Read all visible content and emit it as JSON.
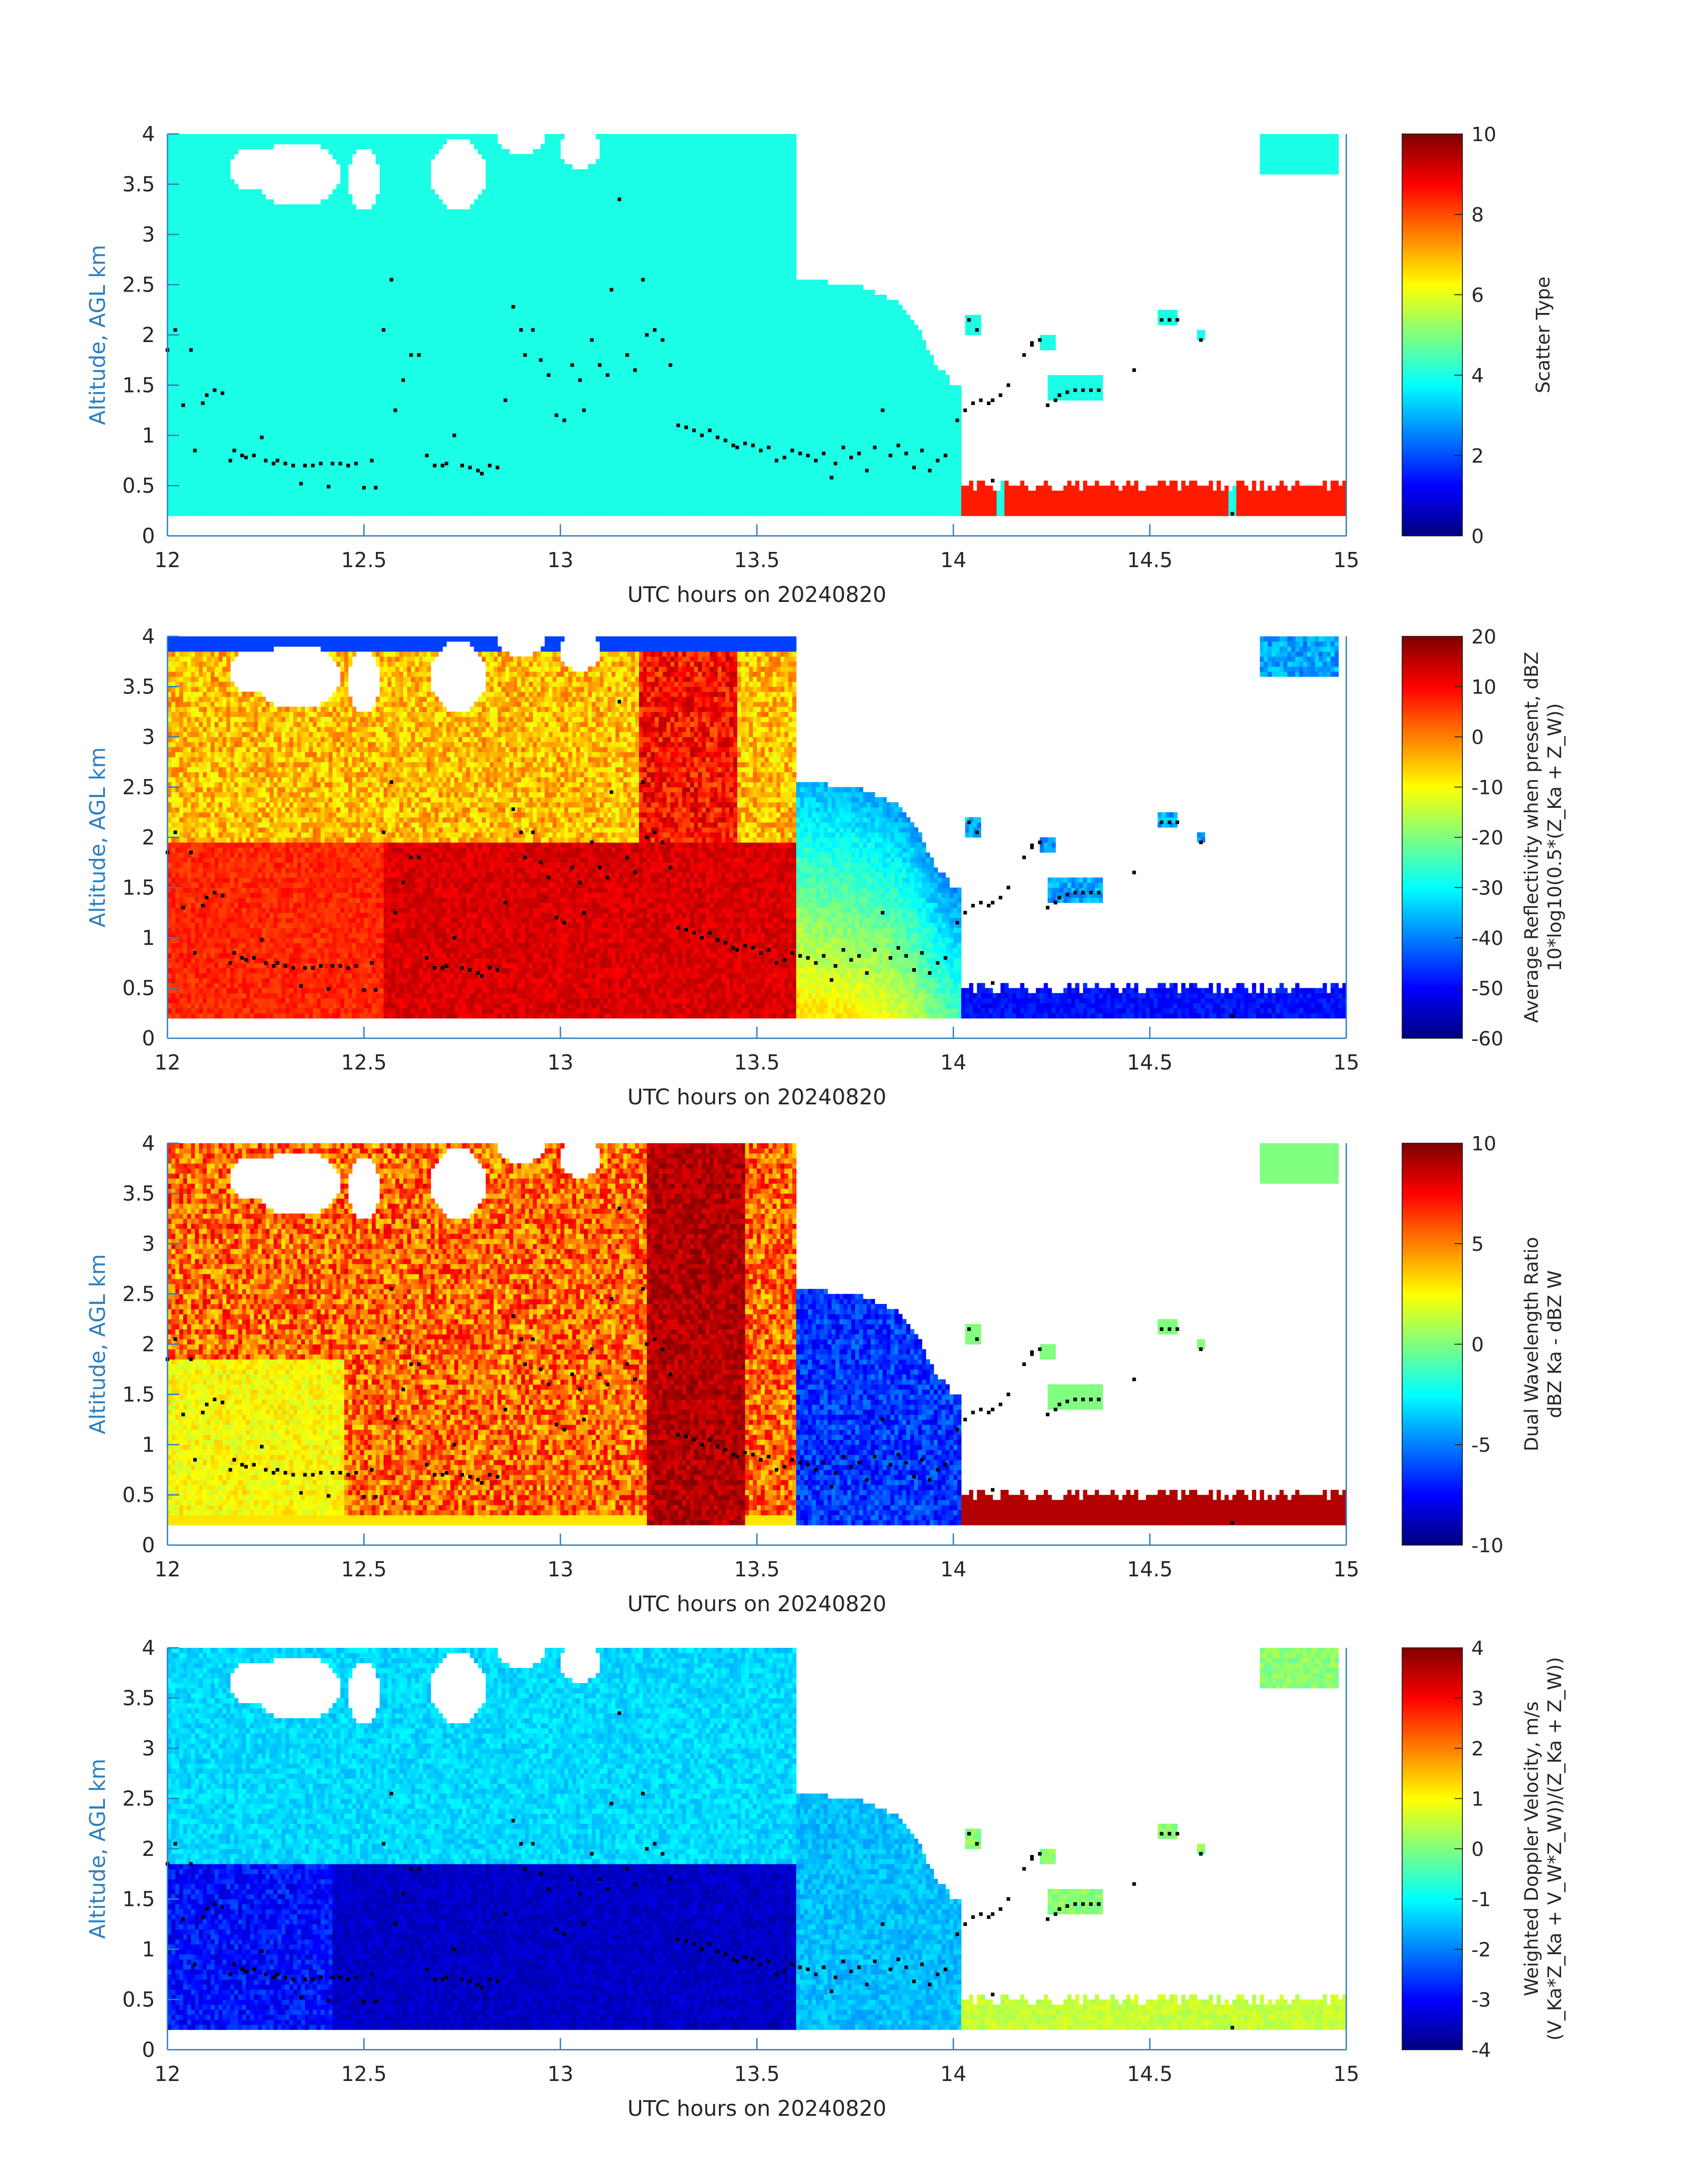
{
  "figure": {
    "colors": {
      "axis": "#2d7fc1",
      "text": "#262626",
      "dots": "#000000"
    }
  },
  "chart_data": [
    {
      "type": "heatmap",
      "xlabel": "UTC hours on 20240820",
      "ylabel": "Altitude, AGL km",
      "xlim": [
        12,
        15
      ],
      "ylim": [
        0,
        4
      ],
      "xticks": [
        "12",
        "12.5",
        "13",
        "13.5",
        "14",
        "14.5",
        "15"
      ],
      "yticks": [
        "0",
        "0.5",
        "1",
        "1.5",
        "2",
        "2.5",
        "3",
        "3.5",
        "4"
      ],
      "colorbar": {
        "label_lines": [
          "Scatter Type"
        ],
        "range": [
          0,
          10
        ],
        "ticks": [
          "0",
          "2",
          "4",
          "6",
          "8",
          "10"
        ]
      },
      "field": "scatter_type",
      "colormap": "jet"
    },
    {
      "type": "heatmap",
      "xlabel": "UTC hours on 20240820",
      "ylabel": "Altitude, AGL km",
      "xlim": [
        12,
        15
      ],
      "ylim": [
        0,
        4
      ],
      "xticks": [
        "12",
        "12.5",
        "13",
        "13.5",
        "14",
        "14.5",
        "15"
      ],
      "yticks": [
        "0",
        "0.5",
        "1",
        "1.5",
        "2",
        "2.5",
        "3",
        "3.5",
        "4"
      ],
      "colorbar": {
        "label_lines": [
          "Average Reflectivity when present, dBZ",
          "10*log10(0.5*(Z_Ka + Z_W))"
        ],
        "range": [
          -60,
          20
        ],
        "ticks": [
          "-60",
          "-50",
          "-40",
          "-30",
          "-20",
          "-10",
          "0",
          "10",
          "20"
        ]
      },
      "field": "reflectivity",
      "colormap": "jet"
    },
    {
      "type": "heatmap",
      "xlabel": "UTC hours on 20240820",
      "ylabel": "Altitude, AGL km",
      "xlim": [
        12,
        15
      ],
      "ylim": [
        0,
        4
      ],
      "xticks": [
        "12",
        "12.5",
        "13",
        "13.5",
        "14",
        "14.5",
        "15"
      ],
      "yticks": [
        "0",
        "0.5",
        "1",
        "1.5",
        "2",
        "2.5",
        "3",
        "3.5",
        "4"
      ],
      "colorbar": {
        "label_lines": [
          "Dual Wavelength Ratio",
          "dBZ Ka - dBZ W"
        ],
        "range": [
          -10,
          10
        ],
        "ticks": [
          "-10",
          "-5",
          "0",
          "5",
          "10"
        ]
      },
      "field": "dwr",
      "colormap": "jet"
    },
    {
      "type": "heatmap",
      "xlabel": "UTC hours on 20240820",
      "ylabel": "Altitude, AGL km",
      "xlim": [
        12,
        15
      ],
      "ylim": [
        0,
        4
      ],
      "xticks": [
        "12",
        "12.5",
        "13",
        "13.5",
        "14",
        "14.5",
        "15"
      ],
      "yticks": [
        "0",
        "0.5",
        "1",
        "1.5",
        "2",
        "2.5",
        "3",
        "3.5",
        "4"
      ],
      "colorbar": {
        "label_lines": [
          "Weighted Doppler Velocity, m/s",
          "(V_Ka*Z_Ka + V_W*Z_W))/(Z_Ka + Z_W))"
        ],
        "range": [
          -4,
          4
        ],
        "ticks": [
          "-4",
          "-3",
          "-2",
          "-1",
          "0",
          "1",
          "2",
          "3",
          "4"
        ]
      },
      "field": "doppler_velocity",
      "colormap": "jet"
    }
  ],
  "cloud_base_points": [
    [
      12.0,
      1.85
    ],
    [
      12.02,
      2.05
    ],
    [
      12.04,
      1.3
    ],
    [
      12.06,
      1.85
    ],
    [
      12.07,
      0.85
    ],
    [
      12.09,
      1.32
    ],
    [
      12.1,
      1.4
    ],
    [
      12.12,
      1.45
    ],
    [
      12.14,
      1.42
    ],
    [
      12.16,
      0.75
    ],
    [
      12.17,
      0.85
    ],
    [
      12.19,
      0.8
    ],
    [
      12.2,
      0.78
    ],
    [
      12.22,
      0.8
    ],
    [
      12.24,
      0.98
    ],
    [
      12.25,
      0.75
    ],
    [
      12.27,
      0.72
    ],
    [
      12.28,
      0.75
    ],
    [
      12.3,
      0.72
    ],
    [
      12.32,
      0.7
    ],
    [
      12.34,
      0.52
    ],
    [
      12.35,
      0.7
    ],
    [
      12.37,
      0.7
    ],
    [
      12.39,
      0.72
    ],
    [
      12.41,
      0.49
    ],
    [
      12.42,
      0.72
    ],
    [
      12.44,
      0.72
    ],
    [
      12.46,
      0.7
    ],
    [
      12.48,
      0.72
    ],
    [
      12.5,
      0.48
    ],
    [
      12.52,
      0.75
    ],
    [
      12.53,
      0.48
    ],
    [
      12.55,
      2.05
    ],
    [
      12.57,
      2.55
    ],
    [
      12.58,
      1.25
    ],
    [
      12.6,
      1.55
    ],
    [
      12.62,
      1.8
    ],
    [
      12.64,
      1.8
    ],
    [
      12.66,
      0.8
    ],
    [
      12.68,
      0.7
    ],
    [
      12.7,
      0.7
    ],
    [
      12.71,
      0.72
    ],
    [
      12.73,
      1.0
    ],
    [
      12.75,
      0.7
    ],
    [
      12.77,
      0.68
    ],
    [
      12.79,
      0.65
    ],
    [
      12.8,
      0.62
    ],
    [
      12.82,
      0.7
    ],
    [
      12.84,
      0.68
    ],
    [
      12.86,
      1.35
    ],
    [
      12.88,
      2.28
    ],
    [
      12.9,
      2.05
    ],
    [
      12.91,
      1.8
    ],
    [
      12.93,
      2.05
    ],
    [
      12.95,
      1.75
    ],
    [
      12.97,
      1.6
    ],
    [
      12.99,
      1.2
    ],
    [
      13.01,
      1.15
    ],
    [
      13.03,
      1.7
    ],
    [
      13.05,
      1.55
    ],
    [
      13.06,
      1.25
    ],
    [
      13.08,
      1.95
    ],
    [
      13.1,
      1.7
    ],
    [
      13.12,
      1.6
    ],
    [
      13.13,
      2.45
    ],
    [
      13.15,
      3.35
    ],
    [
      13.17,
      1.8
    ],
    [
      13.19,
      1.65
    ],
    [
      13.21,
      2.55
    ],
    [
      13.22,
      2.0
    ],
    [
      13.24,
      2.05
    ],
    [
      13.26,
      1.95
    ],
    [
      13.28,
      1.7
    ],
    [
      13.3,
      1.1
    ],
    [
      13.32,
      1.08
    ],
    [
      13.34,
      1.05
    ],
    [
      13.36,
      1.0
    ],
    [
      13.38,
      1.05
    ],
    [
      13.4,
      0.98
    ],
    [
      13.42,
      0.95
    ],
    [
      13.44,
      0.9
    ],
    [
      13.45,
      0.88
    ],
    [
      13.47,
      0.92
    ],
    [
      13.49,
      0.9
    ],
    [
      13.51,
      0.85
    ],
    [
      13.53,
      0.88
    ],
    [
      13.55,
      0.75
    ],
    [
      13.57,
      0.78
    ],
    [
      13.59,
      0.85
    ],
    [
      13.61,
      0.82
    ],
    [
      13.63,
      0.8
    ],
    [
      13.65,
      0.75
    ],
    [
      13.67,
      0.82
    ],
    [
      13.69,
      0.58
    ],
    [
      13.7,
      0.72
    ],
    [
      13.72,
      0.88
    ],
    [
      13.74,
      0.78
    ],
    [
      13.76,
      0.82
    ],
    [
      13.78,
      0.65
    ],
    [
      13.8,
      0.88
    ],
    [
      13.82,
      1.25
    ],
    [
      13.84,
      0.8
    ],
    [
      13.86,
      0.9
    ],
    [
      13.88,
      0.82
    ],
    [
      13.9,
      0.68
    ],
    [
      13.92,
      0.85
    ],
    [
      13.94,
      0.65
    ],
    [
      13.96,
      0.75
    ],
    [
      13.98,
      0.8
    ],
    [
      14.01,
      1.15
    ],
    [
      14.03,
      1.25
    ],
    [
      14.04,
      2.15
    ],
    [
      14.05,
      1.32
    ],
    [
      14.07,
      1.35
    ],
    [
      14.09,
      1.32
    ],
    [
      14.1,
      1.35
    ],
    [
      14.12,
      1.4
    ],
    [
      14.14,
      1.5
    ],
    [
      14.18,
      1.8
    ],
    [
      14.2,
      1.9
    ],
    [
      14.22,
      1.95
    ],
    [
      14.24,
      1.3
    ],
    [
      14.26,
      1.35
    ],
    [
      14.27,
      1.4
    ],
    [
      14.29,
      1.43
    ],
    [
      14.31,
      1.45
    ],
    [
      14.33,
      1.45
    ],
    [
      14.35,
      1.45
    ],
    [
      14.37,
      1.45
    ],
    [
      14.46,
      1.65
    ],
    [
      14.53,
      2.15
    ],
    [
      14.55,
      2.15
    ],
    [
      14.57,
      2.15
    ],
    [
      14.63,
      1.95
    ],
    [
      14.71,
      0.22
    ],
    [
      14.06,
      2.05
    ],
    [
      14.1,
      0.55
    ],
    [
      14.2,
      1.92
    ]
  ]
}
